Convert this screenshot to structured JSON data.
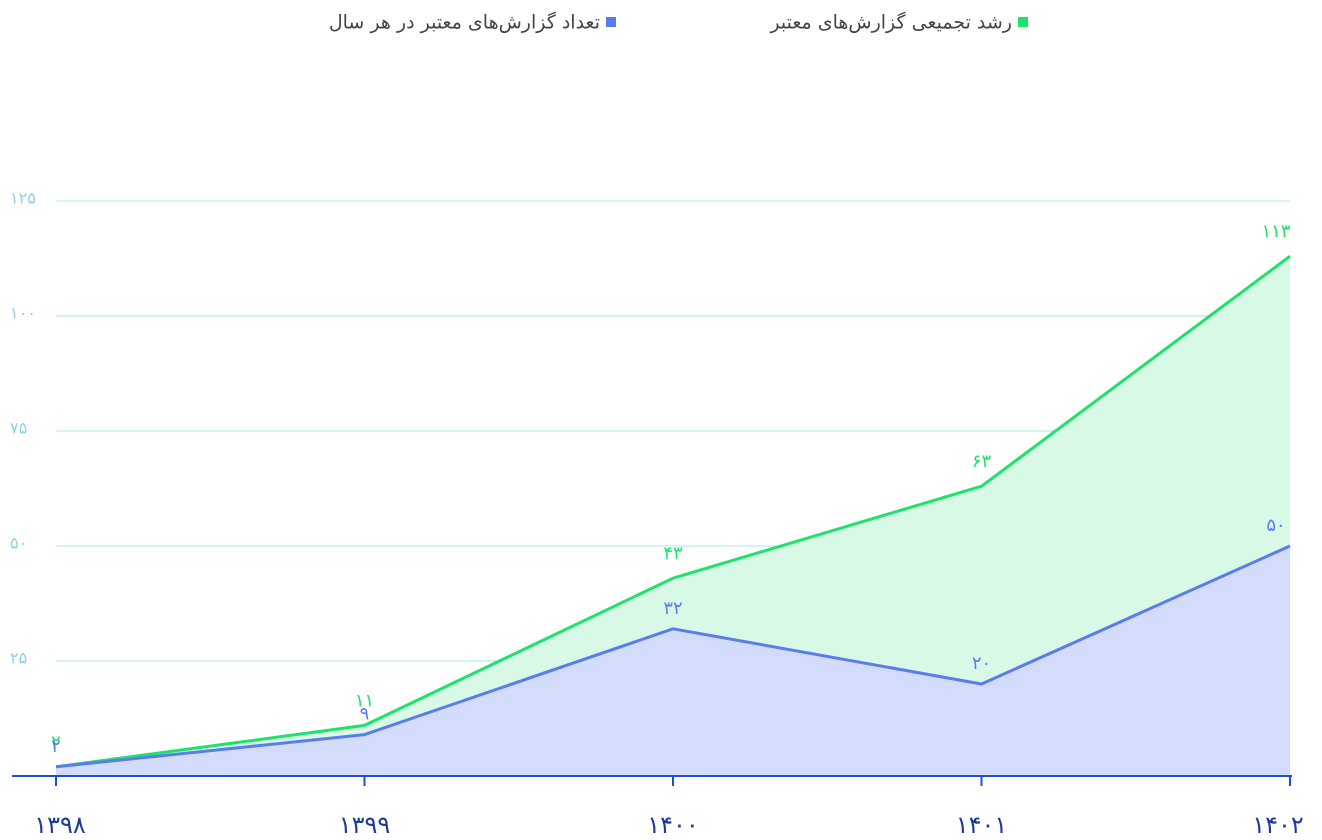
{
  "chart_data": {
    "type": "area",
    "categories": [
      "۱۳۹۸",
      "۱۳۹۹",
      "۱۴۰۰",
      "۱۴۰۱",
      "۱۴۰۲"
    ],
    "series": [
      {
        "name": "رشد تجمیعی گزارش‌های معتبر",
        "color": "#1ee26a",
        "fill": "#d7f9e6",
        "values": [
          2,
          11,
          43,
          63,
          113
        ],
        "value_labels": [
          "۲",
          "۱۱",
          "۴۳",
          "۶۳",
          "۱۱۳"
        ]
      },
      {
        "name": "تعداد گزارش‌های معتبر در هر سال",
        "color": "#5b7cf0",
        "fill": "#d3dcfb",
        "values": [
          2,
          9,
          32,
          20,
          50
        ],
        "value_labels": [
          "۲",
          "۹",
          "۳۲",
          "۲۰",
          "۵۰"
        ]
      }
    ],
    "ylim": [
      0,
      125
    ],
    "yticks": [
      {
        "value": 25,
        "label": "۲۵"
      },
      {
        "value": 50,
        "label": "۵۰"
      },
      {
        "value": 75,
        "label": "۷۵"
      },
      {
        "value": 100,
        "label": "۱۰۰"
      },
      {
        "value": 125,
        "label": "۱۲۵"
      }
    ],
    "grid": true,
    "legend": "top"
  }
}
